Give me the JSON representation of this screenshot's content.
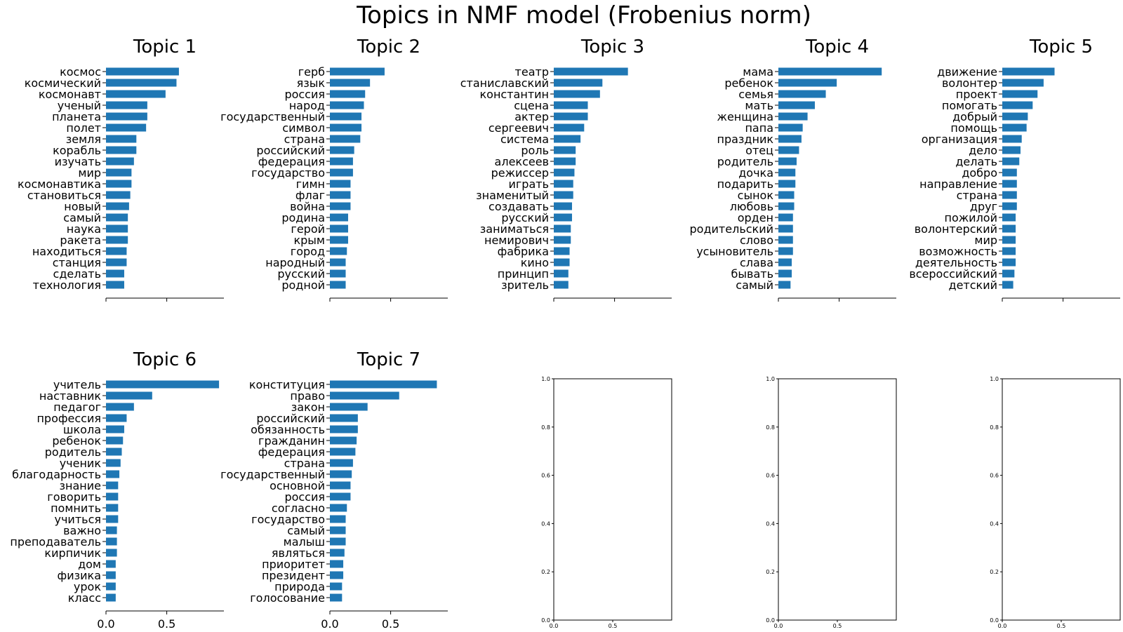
{
  "figure": {
    "suptitle": "Topics in NMF model (Frobenius norm)"
  },
  "colors": {
    "bar": "#1f77b4",
    "axis": "#000000",
    "text": "#000000"
  },
  "chart_data": [
    {
      "type": "bar",
      "orientation": "horizontal",
      "title": "Topic 1",
      "xlim": [
        0,
        0.97
      ],
      "x_ticks": [],
      "x_tick_labels": [],
      "categories": [
        "космос",
        "космический",
        "космонавт",
        "ученый",
        "планета",
        "полет",
        "земля",
        "корабль",
        "изучать",
        "мир",
        "космонавтика",
        "становиться",
        "новый",
        "самый",
        "наука",
        "ракета",
        "находиться",
        "станция",
        "сделать",
        "технология"
      ],
      "values": [
        0.6,
        0.58,
        0.49,
        0.34,
        0.34,
        0.33,
        0.25,
        0.25,
        0.23,
        0.21,
        0.21,
        0.2,
        0.19,
        0.18,
        0.18,
        0.18,
        0.17,
        0.17,
        0.15,
        0.15
      ]
    },
    {
      "type": "bar",
      "orientation": "horizontal",
      "title": "Topic 2",
      "xlim": [
        0,
        0.97
      ],
      "x_ticks": [],
      "x_tick_labels": [],
      "categories": [
        "герб",
        "язык",
        "россия",
        "народ",
        "государственный",
        "символ",
        "страна",
        "российский",
        "федерация",
        "государство",
        "гимн",
        "флаг",
        "война",
        "родина",
        "герой",
        "крым",
        "город",
        "народный",
        "русский",
        "родной"
      ],
      "values": [
        0.45,
        0.33,
        0.29,
        0.28,
        0.26,
        0.26,
        0.25,
        0.2,
        0.19,
        0.19,
        0.17,
        0.17,
        0.17,
        0.15,
        0.15,
        0.15,
        0.14,
        0.13,
        0.13,
        0.13
      ]
    },
    {
      "type": "bar",
      "orientation": "horizontal",
      "title": "Topic 3",
      "xlim": [
        0,
        0.97
      ],
      "x_ticks": [],
      "x_tick_labels": [],
      "categories": [
        "театр",
        "станиславский",
        "константин",
        "сцена",
        "актер",
        "сергеевич",
        "система",
        "роль",
        "алексеев",
        "режиссер",
        "играть",
        "знаменитый",
        "создавать",
        "русский",
        "заниматься",
        "немирович",
        "фабрика",
        "кино",
        "принцип",
        "зритель"
      ],
      "values": [
        0.61,
        0.4,
        0.38,
        0.28,
        0.28,
        0.25,
        0.22,
        0.18,
        0.18,
        0.17,
        0.16,
        0.16,
        0.15,
        0.15,
        0.14,
        0.14,
        0.13,
        0.13,
        0.12,
        0.12
      ]
    },
    {
      "type": "bar",
      "orientation": "horizontal",
      "title": "Topic 4",
      "xlim": [
        0,
        0.97
      ],
      "x_ticks": [],
      "x_tick_labels": [],
      "categories": [
        "мама",
        "ребенок",
        "семья",
        "мать",
        "женщина",
        "папа",
        "праздник",
        "отец",
        "родитель",
        "дочка",
        "подарить",
        "сынок",
        "любовь",
        "орден",
        "родительский",
        "слово",
        "усыновитель",
        "слава",
        "бывать",
        "самый"
      ],
      "values": [
        0.85,
        0.48,
        0.39,
        0.3,
        0.24,
        0.2,
        0.19,
        0.17,
        0.15,
        0.14,
        0.14,
        0.13,
        0.13,
        0.12,
        0.12,
        0.12,
        0.12,
        0.11,
        0.11,
        0.1
      ]
    },
    {
      "type": "bar",
      "orientation": "horizontal",
      "title": "Topic 5",
      "xlim": [
        0,
        0.97
      ],
      "x_ticks": [],
      "x_tick_labels": [],
      "categories": [
        "движение",
        "волонтер",
        "проект",
        "помогать",
        "добрый",
        "помощь",
        "организация",
        "дело",
        "делать",
        "добро",
        "направление",
        "страна",
        "друг",
        "пожилой",
        "волонтерский",
        "мир",
        "возможность",
        "деятельность",
        "всероссийский",
        "детский"
      ],
      "values": [
        0.43,
        0.34,
        0.29,
        0.25,
        0.21,
        0.2,
        0.16,
        0.15,
        0.14,
        0.12,
        0.12,
        0.12,
        0.12,
        0.11,
        0.11,
        0.11,
        0.11,
        0.11,
        0.1,
        0.09
      ]
    },
    {
      "type": "bar",
      "orientation": "horizontal",
      "title": "Topic 6",
      "xlim": [
        0,
        0.97
      ],
      "x_ticks": [
        0.0,
        0.5
      ],
      "x_tick_labels": [
        "0.0",
        "0.5"
      ],
      "categories": [
        "учитель",
        "наставник",
        "педагог",
        "профессия",
        "школа",
        "ребенок",
        "родитель",
        "ученик",
        "благодарность",
        "знание",
        "говорить",
        "помнить",
        "учиться",
        "важно",
        "преподаватель",
        "кирпичик",
        "дом",
        "физика",
        "урок",
        "класс"
      ],
      "values": [
        0.93,
        0.38,
        0.23,
        0.17,
        0.15,
        0.14,
        0.13,
        0.12,
        0.11,
        0.1,
        0.1,
        0.1,
        0.1,
        0.09,
        0.09,
        0.09,
        0.08,
        0.08,
        0.08,
        0.08
      ]
    },
    {
      "type": "bar",
      "orientation": "horizontal",
      "title": "Topic 7",
      "xlim": [
        0,
        0.97
      ],
      "x_ticks": [
        0.0,
        0.5
      ],
      "x_tick_labels": [
        "0.0",
        "0.5"
      ],
      "categories": [
        "конституция",
        "право",
        "закон",
        "российский",
        "обязанность",
        "гражданин",
        "федерация",
        "страна",
        "государственный",
        "основной",
        "россия",
        "согласно",
        "государство",
        "самый",
        "малыш",
        "являться",
        "приоритет",
        "президент",
        "природа",
        "голосование"
      ],
      "values": [
        0.88,
        0.57,
        0.31,
        0.23,
        0.23,
        0.22,
        0.21,
        0.19,
        0.18,
        0.17,
        0.17,
        0.14,
        0.13,
        0.13,
        0.13,
        0.12,
        0.11,
        0.11,
        0.1,
        0.1
      ]
    },
    {
      "type": "empty",
      "title": "",
      "xlim": [
        0,
        1.0
      ],
      "ylim": [
        0,
        1.0
      ],
      "x_ticks": [
        0.0,
        0.5
      ],
      "x_tick_labels": [
        "0.0",
        "0.5"
      ],
      "y_ticks": [
        0.0,
        0.2,
        0.4,
        0.6,
        0.8,
        1.0
      ],
      "y_tick_labels": [
        "0.0",
        "0.2",
        "0.4",
        "0.6",
        "0.8",
        "1.0"
      ]
    },
    {
      "type": "empty",
      "title": "",
      "xlim": [
        0,
        1.0
      ],
      "ylim": [
        0,
        1.0
      ],
      "x_ticks": [
        0.0,
        0.5
      ],
      "x_tick_labels": [
        "0.0",
        "0.5"
      ],
      "y_ticks": [
        0.0,
        0.2,
        0.4,
        0.6,
        0.8,
        1.0
      ],
      "y_tick_labels": [
        "0.0",
        "0.2",
        "0.4",
        "0.6",
        "0.8",
        "1.0"
      ]
    },
    {
      "type": "empty",
      "title": "",
      "xlim": [
        0,
        1.0
      ],
      "ylim": [
        0,
        1.0
      ],
      "x_ticks": [
        0.0,
        0.5
      ],
      "x_tick_labels": [
        "0.0",
        "0.5"
      ],
      "y_ticks": [
        0.0,
        0.2,
        0.4,
        0.6,
        0.8,
        1.0
      ],
      "y_tick_labels": [
        "0.0",
        "0.2",
        "0.4",
        "0.6",
        "0.8",
        "1.0"
      ]
    }
  ]
}
